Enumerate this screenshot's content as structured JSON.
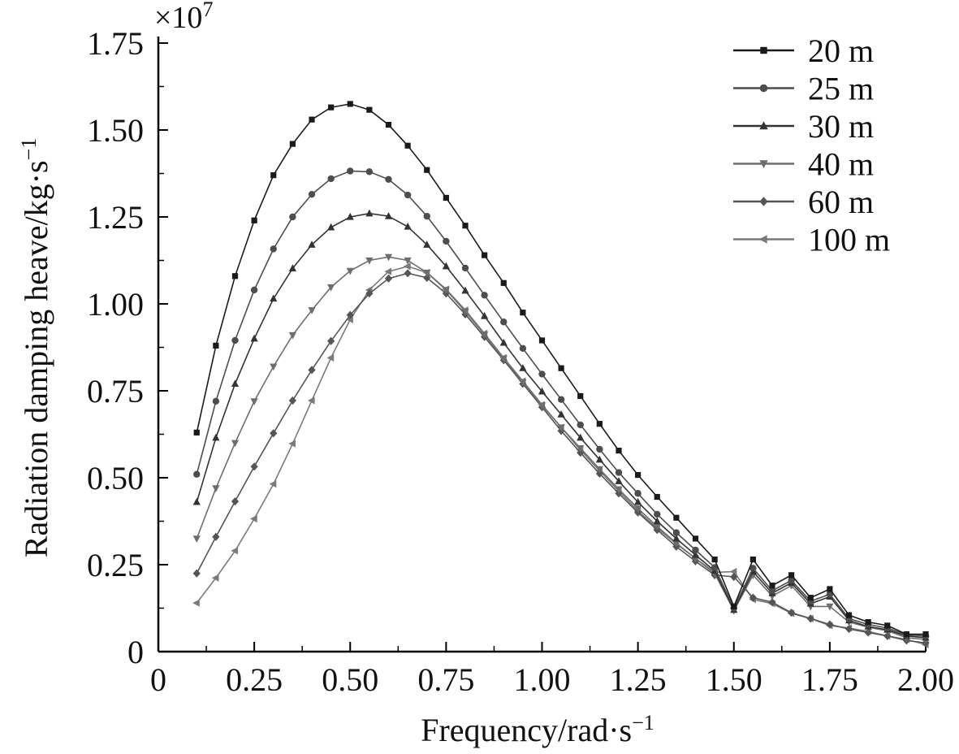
{
  "chart_data": {
    "type": "line",
    "xlabel": "Frequency/rad·s",
    "xlabel_sup": "−1",
    "ylabel": "Radiation damping heave/kg·s",
    "ylabel_sup": "−1",
    "y_exponent": "×10",
    "y_exponent_sup": "7",
    "xlim": [
      0,
      2.0
    ],
    "ylim": [
      0,
      1.75
    ],
    "xticks": [
      "0",
      "0.25",
      "0.50",
      "0.75",
      "1.00",
      "1.25",
      "1.50",
      "1.75",
      "2.00"
    ],
    "yticks": [
      "0",
      "0.25",
      "0.50",
      "0.75",
      "1.00",
      "1.25",
      "1.50",
      "1.75"
    ],
    "x": [
      0.1,
      0.15,
      0.2,
      0.25,
      0.3,
      0.35,
      0.4,
      0.45,
      0.5,
      0.55,
      0.6,
      0.65,
      0.7,
      0.75,
      0.8,
      0.85,
      0.9,
      0.95,
      1.0,
      1.05,
      1.1,
      1.15,
      1.2,
      1.25,
      1.3,
      1.35,
      1.4,
      1.45,
      1.5,
      1.55,
      1.6,
      1.65,
      1.7,
      1.75,
      1.8,
      1.85,
      1.9,
      1.95,
      2.0
    ],
    "grid": false,
    "legend_position": "top-right",
    "series": [
      {
        "name": "20 m",
        "marker": "square",
        "color": "#1a1a1a",
        "values": [
          0.63,
          0.88,
          1.08,
          1.24,
          1.37,
          1.46,
          1.53,
          1.565,
          1.575,
          1.558,
          1.515,
          1.455,
          1.385,
          1.305,
          1.225,
          1.14,
          1.06,
          0.975,
          0.895,
          0.815,
          0.735,
          0.655,
          0.578,
          0.508,
          0.445,
          0.385,
          0.325,
          0.265,
          0.13,
          0.265,
          0.19,
          0.22,
          0.155,
          0.18,
          0.105,
          0.085,
          0.075,
          0.05,
          0.05
        ]
      },
      {
        "name": "25 m",
        "marker": "circle",
        "color": "#4d4d4d",
        "values": [
          0.51,
          0.72,
          0.895,
          1.04,
          1.158,
          1.25,
          1.315,
          1.36,
          1.382,
          1.38,
          1.358,
          1.313,
          1.252,
          1.18,
          1.103,
          1.025,
          0.948,
          0.872,
          0.798,
          0.725,
          0.652,
          0.582,
          0.515,
          0.455,
          0.395,
          0.342,
          0.292,
          0.242,
          0.125,
          0.24,
          0.175,
          0.205,
          0.145,
          0.165,
          0.095,
          0.078,
          0.068,
          0.048,
          0.045
        ]
      },
      {
        "name": "30 m",
        "marker": "triangle-up",
        "color": "#333333",
        "values": [
          0.43,
          0.615,
          0.77,
          0.9,
          1.015,
          1.102,
          1.17,
          1.22,
          1.25,
          1.26,
          1.252,
          1.222,
          1.17,
          1.108,
          1.038,
          0.965,
          0.888,
          0.815,
          0.748,
          0.682,
          0.615,
          0.552,
          0.49,
          0.43,
          0.375,
          0.325,
          0.278,
          0.232,
          0.12,
          0.23,
          0.168,
          0.198,
          0.138,
          0.158,
          0.09,
          0.072,
          0.063,
          0.045,
          0.04
        ]
      },
      {
        "name": "40 m",
        "marker": "triangle-down",
        "color": "#6e6e6e",
        "values": [
          0.325,
          0.47,
          0.6,
          0.72,
          0.82,
          0.91,
          0.982,
          1.048,
          1.095,
          1.125,
          1.135,
          1.125,
          1.09,
          1.04,
          0.978,
          0.912,
          0.843,
          0.775,
          0.708,
          0.645,
          0.585,
          0.525,
          0.467,
          0.412,
          0.36,
          0.312,
          0.268,
          0.225,
          0.118,
          0.22,
          0.16,
          0.19,
          0.13,
          0.13,
          0.085,
          0.07,
          0.06,
          0.04,
          0.035
        ]
      },
      {
        "name": "60 m",
        "marker": "diamond",
        "color": "#555555",
        "values": [
          0.225,
          0.33,
          0.432,
          0.532,
          0.628,
          0.722,
          0.81,
          0.893,
          0.968,
          1.03,
          1.073,
          1.088,
          1.075,
          1.03,
          0.97,
          0.905,
          0.838,
          0.77,
          0.703,
          0.635,
          0.572,
          0.512,
          0.455,
          0.4,
          0.35,
          0.302,
          0.26,
          0.22,
          0.215,
          0.155,
          0.142,
          0.112,
          0.095,
          0.078,
          0.065,
          0.055,
          0.045,
          0.032,
          0.025
        ]
      },
      {
        "name": "100 m",
        "marker": "triangle-left",
        "color": "#7a7a7a",
        "values": [
          0.14,
          0.212,
          0.29,
          0.382,
          0.482,
          0.598,
          0.722,
          0.845,
          0.955,
          1.04,
          1.093,
          1.108,
          1.09,
          1.042,
          0.982,
          0.915,
          0.845,
          0.778,
          0.71,
          0.645,
          0.58,
          0.52,
          0.462,
          0.405,
          0.355,
          0.31,
          0.268,
          0.228,
          0.23,
          0.15,
          0.138,
          0.11,
          0.095,
          0.075,
          0.068,
          0.058,
          0.045,
          0.035,
          0.02
        ]
      }
    ]
  }
}
